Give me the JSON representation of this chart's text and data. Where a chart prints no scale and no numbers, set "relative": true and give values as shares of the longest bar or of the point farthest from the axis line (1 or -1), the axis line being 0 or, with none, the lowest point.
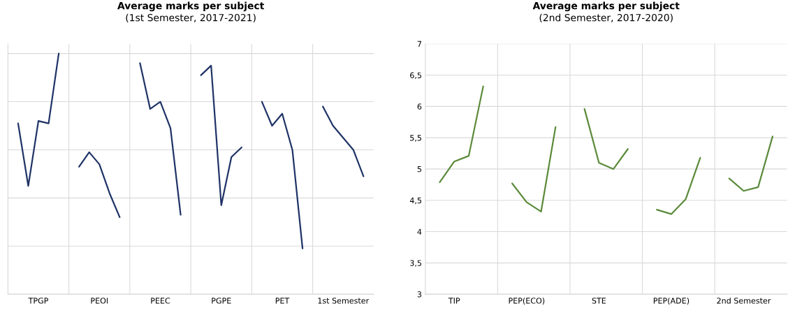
{
  "chart_data": [
    {
      "type": "line",
      "title": "Average marks per subject",
      "subtitle": "(1st Semester, 2017-2021)",
      "relative": true,
      "grid": true,
      "tick_labels": "x",
      "categories": [
        null,
        null,
        "TPGP",
        null,
        null,
        null,
        null,
        null,
        "PEOI",
        null,
        null,
        null,
        null,
        null,
        "PEEC",
        null,
        null,
        null,
        null,
        null,
        "PGPE",
        null,
        null,
        null,
        null,
        null,
        "PET",
        null,
        null,
        null,
        null,
        null,
        "1st Semester",
        null,
        null
      ],
      "series": [
        {
          "color": "#1f3366",
          "values": [
            0.71,
            0.45,
            0.72,
            0.71,
            1.0,
            null,
            null,
            null,
            null,
            null,
            null,
            null,
            null,
            null,
            null,
            null,
            null,
            null,
            null,
            null,
            null,
            null,
            null,
            null,
            null,
            null,
            null,
            null,
            null,
            null,
            null,
            null,
            null,
            null,
            null
          ]
        },
        {
          "color": "#1f3366",
          "values": [
            null,
            null,
            null,
            null,
            null,
            null,
            0.53,
            0.59,
            0.54,
            0.42,
            0.32,
            null,
            null,
            null,
            null,
            null,
            null,
            null,
            null,
            null,
            null,
            null,
            null,
            null,
            null,
            null,
            null,
            null,
            null,
            null,
            null,
            null,
            null,
            null,
            null
          ]
        },
        {
          "color": "#1f3366",
          "values": [
            null,
            null,
            null,
            null,
            null,
            null,
            null,
            null,
            null,
            null,
            null,
            null,
            0.96,
            0.77,
            0.8,
            0.69,
            0.33,
            null,
            null,
            null,
            null,
            null,
            null,
            null,
            null,
            null,
            null,
            null,
            null,
            null,
            null,
            null,
            null,
            null,
            null
          ]
        },
        {
          "color": "#1f3366",
          "values": [
            null,
            null,
            null,
            null,
            null,
            null,
            null,
            null,
            null,
            null,
            null,
            null,
            null,
            null,
            null,
            null,
            null,
            null,
            0.91,
            0.95,
            0.37,
            0.57,
            0.61,
            null,
            null,
            null,
            null,
            null,
            null,
            null,
            null,
            null,
            null,
            null,
            null
          ]
        },
        {
          "color": "#1f3366",
          "values": [
            null,
            null,
            null,
            null,
            null,
            null,
            null,
            null,
            null,
            null,
            null,
            null,
            null,
            null,
            null,
            null,
            null,
            null,
            null,
            null,
            null,
            null,
            null,
            null,
            0.8,
            0.7,
            0.75,
            0.6,
            0.19,
            null,
            null,
            null,
            null,
            null,
            null
          ]
        },
        {
          "color": "#1f3366",
          "values": [
            null,
            null,
            null,
            null,
            null,
            null,
            null,
            null,
            null,
            null,
            null,
            null,
            null,
            null,
            null,
            null,
            null,
            null,
            null,
            null,
            null,
            null,
            null,
            null,
            null,
            null,
            null,
            null,
            null,
            null,
            0.78,
            0.7,
            0.65,
            0.6,
            0.49
          ]
        }
      ]
    },
    {
      "type": "line",
      "title": "Average marks per subject",
      "subtitle": "(2nd Semester, 2017-2020)",
      "grid": true,
      "ylim": [
        3,
        7
      ],
      "yticks": [
        3,
        {
          "value": 3.5,
          "label": "3,5"
        },
        4,
        {
          "value": 4.5,
          "label": "4,5"
        },
        5,
        {
          "value": 5.5,
          "label": "5,5"
        },
        6,
        {
          "value": 6.5,
          "label": "6,5"
        },
        7
      ],
      "categories": [
        null,
        "TIP",
        null,
        null,
        null,
        null,
        "PEP(ECO)",
        null,
        null,
        null,
        null,
        "STE",
        null,
        null,
        null,
        null,
        "PEP(ADE)",
        null,
        null,
        null,
        null,
        "2nd Semester",
        null,
        null
      ],
      "series": [
        {
          "color": "#5b8a3a",
          "values": [
            4.79,
            5.12,
            5.21,
            6.32,
            null,
            null,
            null,
            null,
            null,
            null,
            null,
            null,
            null,
            null,
            null,
            null,
            null,
            null,
            null,
            null,
            null,
            null,
            null,
            null
          ]
        },
        {
          "color": "#5b8a3a",
          "values": [
            null,
            null,
            null,
            null,
            null,
            4.77,
            4.47,
            4.32,
            5.67,
            null,
            null,
            null,
            null,
            null,
            null,
            null,
            null,
            null,
            null,
            null,
            null,
            null,
            null,
            null
          ]
        },
        {
          "color": "#5b8a3a",
          "values": [
            null,
            null,
            null,
            null,
            null,
            null,
            null,
            null,
            null,
            null,
            5.96,
            5.1,
            5.0,
            5.32,
            null,
            null,
            null,
            null,
            null,
            null,
            null,
            null,
            null,
            null
          ]
        },
        {
          "color": "#5b8a3a",
          "values": [
            null,
            null,
            null,
            null,
            null,
            null,
            null,
            null,
            null,
            null,
            null,
            null,
            null,
            null,
            null,
            4.35,
            4.28,
            4.52,
            5.18,
            null,
            null,
            null,
            null,
            null
          ]
        },
        {
          "color": "#5b8a3a",
          "values": [
            null,
            null,
            null,
            null,
            null,
            null,
            null,
            null,
            null,
            null,
            null,
            null,
            null,
            null,
            null,
            null,
            null,
            null,
            null,
            null,
            4.85,
            4.65,
            4.71,
            5.52
          ]
        }
      ]
    }
  ]
}
